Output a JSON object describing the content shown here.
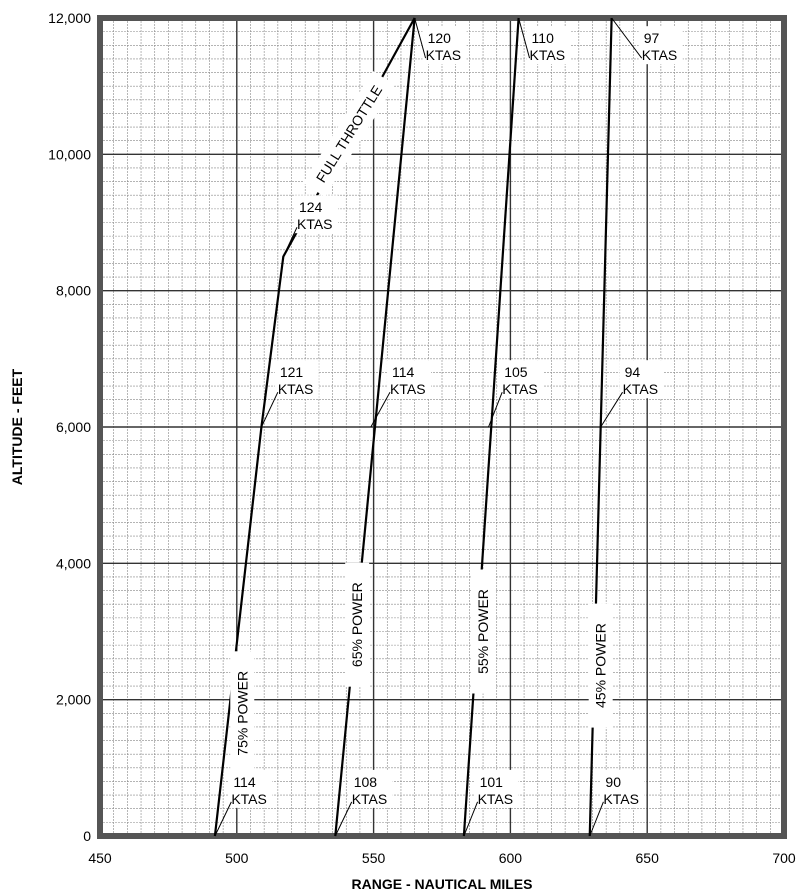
{
  "chart_data": {
    "type": "line",
    "title": "",
    "xlabel": "RANGE - NAUTICAL MILES",
    "ylabel": "ALTITUDE - FEET",
    "xlim": [
      450,
      700
    ],
    "ylim": [
      0,
      12000
    ],
    "x_ticks": [
      "450",
      "500",
      "550",
      "600",
      "650",
      "700"
    ],
    "y_ticks": [
      "0",
      "2,000",
      "4,000",
      "6,000",
      "8,000",
      "10,000",
      "12,000"
    ],
    "grid": true,
    "series": [
      {
        "name": "75% POWER",
        "x": [
          492,
          509,
          517,
          565
        ],
        "y": [
          0,
          6000,
          8500,
          12000
        ]
      },
      {
        "name": "65% POWER",
        "x": [
          536,
          565
        ],
        "y": [
          0,
          12000
        ]
      },
      {
        "name": "55% POWER",
        "x": [
          583,
          603
        ],
        "y": [
          0,
          12000
        ]
      },
      {
        "name": "45% POWER",
        "x": [
          629,
          637
        ],
        "y": [
          0,
          12000
        ]
      }
    ],
    "annotations": [
      {
        "text": "FULL THROTTLE",
        "x": 541,
        "y": 10300
      },
      {
        "text": "124 KTAS",
        "x": 517,
        "y": 8500
      },
      {
        "text": "120 KTAS",
        "x": 565,
        "y": 12000
      },
      {
        "text": "110 KTAS",
        "x": 603,
        "y": 12000
      },
      {
        "text": "97 KTAS",
        "x": 637,
        "y": 12000
      },
      {
        "text": "121 KTAS",
        "x": 509,
        "y": 6000
      },
      {
        "text": "114 KTAS",
        "x": 549,
        "y": 6000
      },
      {
        "text": "105 KTAS",
        "x": 592,
        "y": 6000
      },
      {
        "text": "94 KTAS",
        "x": 633,
        "y": 6000
      },
      {
        "text": "114 KTAS",
        "x": 492,
        "y": 0
      },
      {
        "text": "108 KTAS",
        "x": 536,
        "y": 0
      },
      {
        "text": "101 KTAS",
        "x": 583,
        "y": 0
      },
      {
        "text": "90 KTAS",
        "x": 629,
        "y": 0
      }
    ]
  }
}
